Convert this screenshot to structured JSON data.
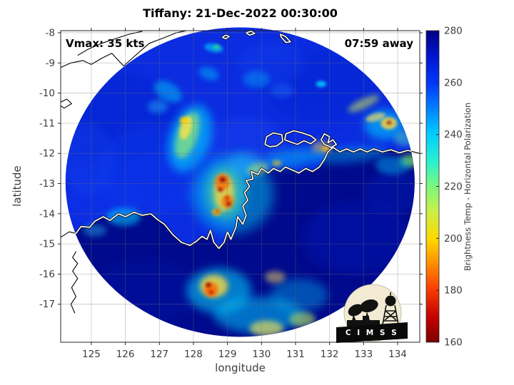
{
  "figure": {
    "name": "CIMSS microwave brightness temperature display"
  },
  "logo": {
    "text": "C I M S S"
  },
  "chart_data": {
    "type": "heatmap",
    "title": "Tiffany: 21-Dec-2022 00:30:00",
    "annotations": {
      "vmax": "Vmax: 35 kts",
      "away": "07:59 away"
    },
    "axes": {
      "xlabel": "longitude",
      "ylabel": "latitude",
      "xlim": [
        124.1,
        134.65
      ],
      "ylim": [
        -18.26,
        -7.93
      ],
      "xticks": [
        125,
        126,
        127,
        128,
        129,
        130,
        131,
        132,
        133,
        134
      ],
      "yticks": [
        -8,
        -9,
        -10,
        -11,
        -12,
        -13,
        -14,
        -15,
        -16,
        -17
      ],
      "grid": true,
      "tick_color": "#3d3d3d",
      "box_color": "#262626"
    },
    "colorbar": {
      "label": "Brightness Temp - Horizontal Polarization",
      "ticks": [
        280,
        260,
        240,
        220,
        200,
        180,
        160
      ],
      "range": [
        160,
        280
      ],
      "stops": [
        [
          0,
          "#000084"
        ],
        [
          9,
          "#0018d4"
        ],
        [
          17,
          "#0038f8"
        ],
        [
          25,
          "#0080ff"
        ],
        [
          33,
          "#00ccff"
        ],
        [
          42,
          "#2af0d0"
        ],
        [
          50,
          "#7cf87c"
        ],
        [
          58,
          "#c8f048"
        ],
        [
          67,
          "#ffd800"
        ],
        [
          75,
          "#ff8c00"
        ],
        [
          83,
          "#f83c00"
        ],
        [
          92,
          "#c40000"
        ],
        [
          100,
          "#7c0000"
        ]
      ]
    },
    "swath": {
      "center": [
        129.37,
        -12.95
      ],
      "radius_deg": 5.13,
      "base_color": "#0b2ce0"
    },
    "land": {
      "color": "#000a8c",
      "close_lat": -18.6
    },
    "features": [
      [
        "m",
        125.6,
        -10.8,
        2.0,
        1.5,
        0,
        "#0524cc",
        0.45,
        8
      ],
      [
        "m",
        127.0,
        -12.5,
        1.8,
        1.5,
        0,
        "#0e3cf2",
        0.35,
        8
      ],
      [
        "m",
        131.8,
        -9.8,
        1.7,
        1.2,
        0,
        "#0524cc",
        0.4,
        8
      ],
      [
        "m",
        129.5,
        -11.7,
        1.2,
        0.9,
        0,
        "#1a4af5",
        0.35,
        6
      ],
      [
        "m",
        125.3,
        -13.6,
        1.1,
        0.8,
        0,
        "#0a36ee",
        0.4,
        6
      ],
      [
        "m",
        124.9,
        -12.2,
        0.8,
        1.2,
        0,
        "#1646f0",
        0.3,
        6
      ],
      [
        "m",
        130.3,
        -9.0,
        1.0,
        0.7,
        0,
        "#1646f0",
        0.3,
        6
      ],
      [
        "l",
        132.8,
        -14.8,
        1.6,
        1.2,
        0,
        "#0018b4",
        0.45,
        8
      ],
      [
        "l",
        126.6,
        -16.6,
        1.6,
        1.1,
        0,
        "#0016a8",
        0.4,
        8
      ],
      [
        "l",
        133.9,
        -13.3,
        0.9,
        0.7,
        0,
        "#0020c0",
        0.35,
        6
      ],
      [
        "f",
        127.9,
        -11.5,
        0.6,
        1.15,
        18,
        "#00d2ff",
        0.6,
        6
      ],
      [
        "f",
        127.82,
        -11.4,
        0.3,
        0.8,
        18,
        "#8ce87a",
        0.75,
        4
      ],
      [
        "f",
        127.78,
        -11.15,
        0.16,
        0.4,
        15,
        "#ffe24a",
        0.8,
        2
      ],
      [
        "f",
        127.72,
        -10.9,
        0.12,
        0.12,
        0,
        "#ffd200",
        0.85,
        2
      ],
      [
        "f",
        127.25,
        -9.95,
        0.45,
        0.3,
        30,
        "#00c8f8",
        0.5,
        4
      ],
      [
        "f",
        126.95,
        -10.45,
        0.3,
        0.22,
        0,
        "#28c8ff",
        0.4,
        4
      ],
      [
        "f",
        128.45,
        -9.35,
        0.3,
        0.2,
        20,
        "#00ccff",
        0.45,
        4
      ],
      [
        "f",
        129.85,
        -9.55,
        0.4,
        0.28,
        0,
        "#00c4ff",
        0.35,
        4
      ],
      [
        "f",
        128.6,
        -8.5,
        0.28,
        0.14,
        10,
        "#00d8ff",
        0.6,
        2
      ],
      [
        "f",
        128.68,
        -8.47,
        0.09,
        0.07,
        0,
        "#34e07c",
        0.9,
        2
      ],
      [
        "f",
        131.75,
        -9.7,
        0.15,
        0.1,
        0,
        "#00e2ff",
        0.8,
        2
      ],
      [
        "f",
        130.6,
        -9.9,
        0.35,
        0.25,
        0,
        "#1e62f5",
        0.5,
        4
      ],
      [
        "f",
        129.15,
        -13.35,
        1.2,
        1.3,
        0,
        "#00c8f2",
        0.5,
        8
      ],
      [
        "f",
        128.95,
        -13.3,
        0.6,
        0.9,
        0,
        "#49dca0",
        0.55,
        6
      ],
      [
        "f",
        128.9,
        -13.3,
        0.3,
        0.62,
        0,
        "#ffd83a",
        0.8,
        4
      ],
      [
        "f",
        128.85,
        -12.95,
        0.22,
        0.28,
        0,
        "#ff6a00",
        0.75,
        2
      ],
      [
        "f",
        129.0,
        -13.6,
        0.18,
        0.22,
        0,
        "#ff7000",
        0.75,
        2
      ],
      [
        "f",
        128.68,
        -13.95,
        0.14,
        0.12,
        0,
        "#ffb400",
        0.8,
        2
      ],
      [
        "f",
        129.55,
        -12.35,
        0.5,
        0.4,
        0,
        "#2ab4f8",
        0.45,
        6
      ],
      [
        "f",
        129.9,
        -12.5,
        0.35,
        0.18,
        -15,
        "#b8e85c",
        0.55,
        4
      ],
      [
        "f",
        130.45,
        -12.32,
        0.14,
        0.11,
        0,
        "#ff9800",
        0.85,
        2
      ],
      [
        "f",
        130.9,
        -12.15,
        0.85,
        0.3,
        -8,
        "#00ccff",
        0.45,
        6
      ],
      [
        "f",
        131.9,
        -11.85,
        0.13,
        0.1,
        0,
        "#ff8400",
        0.9,
        2
      ],
      [
        "f",
        131.78,
        -11.8,
        0.3,
        0.2,
        0,
        "#ffd83a",
        0.5,
        4
      ],
      [
        "f",
        132.6,
        -12.05,
        1.1,
        0.25,
        -5,
        "#00c8ff",
        0.4,
        6
      ],
      [
        "f",
        134.35,
        -12.25,
        0.28,
        0.2,
        0,
        "#7ce05c",
        0.75,
        4
      ],
      [
        "f",
        133.85,
        -12.4,
        0.5,
        0.3,
        0,
        "#00c0f8",
        0.45,
        4
      ],
      [
        "f",
        133.62,
        -11.05,
        0.6,
        0.5,
        0,
        "#00ccff",
        0.6,
        6
      ],
      [
        "f",
        133.74,
        -11.0,
        0.24,
        0.2,
        0,
        "#ffd83a",
        0.85,
        2
      ],
      [
        "f",
        133.0,
        -10.35,
        0.5,
        0.16,
        -25,
        "#c4e458",
        0.6,
        4
      ],
      [
        "f",
        133.35,
        -10.8,
        0.3,
        0.13,
        -15,
        "#ffe258",
        0.65,
        2
      ],
      [
        "f",
        134.2,
        -11.5,
        0.3,
        0.25,
        0,
        "#4ad8c8",
        0.5,
        4
      ],
      [
        "f",
        125.95,
        -14.1,
        0.5,
        0.3,
        0,
        "#00ccff",
        0.55,
        4
      ],
      [
        "f",
        125.1,
        -14.55,
        0.35,
        0.2,
        0,
        "#2cc4f4",
        0.4,
        4
      ],
      [
        "f",
        128.75,
        -16.55,
        0.95,
        0.75,
        0,
        "#00c8f8",
        0.6,
        6
      ],
      [
        "f",
        128.6,
        -16.4,
        0.42,
        0.38,
        0,
        "#ffd83a",
        0.8,
        4
      ],
      [
        "f",
        128.52,
        -16.52,
        0.2,
        0.24,
        0,
        "#ff6a00",
        0.85,
        2
      ],
      [
        "f",
        129.9,
        -17.35,
        1.3,
        0.6,
        0,
        "#00c4f8",
        0.55,
        6
      ],
      [
        "f",
        130.15,
        -17.8,
        0.5,
        0.26,
        0,
        "#e4e05a",
        0.7,
        4
      ],
      [
        "f",
        131.2,
        -17.5,
        0.38,
        0.26,
        0,
        "#aade62",
        0.65,
        4
      ],
      [
        "f",
        131.1,
        -16.7,
        0.85,
        0.55,
        0,
        "#00b8f0",
        0.4,
        6
      ],
      [
        "f",
        130.4,
        -16.1,
        0.3,
        0.2,
        0,
        "#ffdf60",
        0.5,
        4
      ]
    ],
    "cores": [
      [
        128.86,
        -12.87,
        0.15,
        "#8c0000"
      ],
      [
        128.79,
        -13.2,
        0.12,
        "#a30000"
      ],
      [
        128.99,
        -13.48,
        0.1,
        "#c41c00"
      ],
      [
        129.03,
        -13.67,
        0.12,
        "#8c0000"
      ],
      [
        128.7,
        -13.92,
        0.09,
        "#d43400"
      ],
      [
        128.44,
        -16.36,
        0.13,
        "#8c0000"
      ],
      [
        128.52,
        -16.6,
        0.1,
        "#a30000"
      ],
      [
        133.75,
        -10.98,
        0.11,
        "#a30000"
      ]
    ],
    "coastlines": {
      "mainland": [
        [
          124.1,
          -14.78
        ],
        [
          124.35,
          -14.6
        ],
        [
          124.55,
          -14.65
        ],
        [
          124.7,
          -14.42
        ],
        [
          124.95,
          -14.45
        ],
        [
          125.1,
          -14.25
        ],
        [
          125.35,
          -14.1
        ],
        [
          125.55,
          -14.22
        ],
        [
          125.8,
          -14.0
        ],
        [
          126.0,
          -14.1
        ],
        [
          126.25,
          -13.95
        ],
        [
          126.5,
          -14.05
        ],
        [
          126.75,
          -14.0
        ],
        [
          126.95,
          -14.2
        ],
        [
          127.15,
          -14.35
        ],
        [
          127.4,
          -14.7
        ],
        [
          127.65,
          -14.95
        ],
        [
          127.9,
          -15.05
        ],
        [
          128.1,
          -14.9
        ],
        [
          128.25,
          -14.75
        ],
        [
          128.4,
          -14.85
        ],
        [
          128.5,
          -14.55
        ],
        [
          128.6,
          -14.95
        ],
        [
          128.75,
          -15.15
        ],
        [
          128.9,
          -14.95
        ],
        [
          129.0,
          -14.6
        ],
        [
          129.1,
          -14.85
        ],
        [
          129.25,
          -14.45
        ],
        [
          129.3,
          -14.1
        ],
        [
          129.45,
          -14.35
        ],
        [
          129.55,
          -14.05
        ],
        [
          129.45,
          -13.75
        ],
        [
          129.6,
          -13.55
        ],
        [
          129.5,
          -13.3
        ],
        [
          129.65,
          -13.1
        ],
        [
          129.55,
          -12.9
        ],
        [
          129.75,
          -12.85
        ],
        [
          129.7,
          -12.6
        ],
        [
          129.9,
          -12.7
        ],
        [
          130.0,
          -12.5
        ],
        [
          130.2,
          -12.65
        ],
        [
          130.35,
          -12.5
        ],
        [
          130.55,
          -12.6
        ],
        [
          130.7,
          -12.45
        ],
        [
          130.9,
          -12.55
        ],
        [
          131.1,
          -12.65
        ],
        [
          131.3,
          -12.5
        ],
        [
          131.5,
          -12.6
        ],
        [
          131.7,
          -12.45
        ],
        [
          131.85,
          -12.2
        ],
        [
          131.95,
          -11.95
        ],
        [
          132.1,
          -11.8
        ],
        [
          132.3,
          -11.95
        ],
        [
          132.5,
          -11.85
        ],
        [
          132.7,
          -11.95
        ],
        [
          132.9,
          -11.85
        ],
        [
          133.1,
          -11.95
        ],
        [
          133.3,
          -11.85
        ],
        [
          133.55,
          -11.95
        ],
        [
          133.8,
          -11.88
        ],
        [
          134.05,
          -11.98
        ],
        [
          134.3,
          -11.9
        ],
        [
          134.65,
          -12.0
        ]
      ],
      "islands": [
        [
          [
            130.1,
            -11.7
          ],
          [
            130.15,
            -11.45
          ],
          [
            130.35,
            -11.32
          ],
          [
            130.6,
            -11.38
          ],
          [
            130.62,
            -11.6
          ],
          [
            130.45,
            -11.75
          ],
          [
            130.25,
            -11.78
          ],
          [
            130.1,
            -11.7
          ]
        ],
        [
          [
            130.68,
            -11.55
          ],
          [
            130.72,
            -11.35
          ],
          [
            130.95,
            -11.25
          ],
          [
            131.2,
            -11.32
          ],
          [
            131.45,
            -11.42
          ],
          [
            131.6,
            -11.55
          ],
          [
            131.45,
            -11.68
          ],
          [
            131.25,
            -11.58
          ],
          [
            131.05,
            -11.7
          ],
          [
            130.85,
            -11.62
          ],
          [
            130.68,
            -11.55
          ]
        ],
        [
          [
            131.75,
            -11.55
          ],
          [
            131.85,
            -11.35
          ],
          [
            132.0,
            -11.45
          ],
          [
            131.95,
            -11.65
          ],
          [
            132.1,
            -11.55
          ],
          [
            132.2,
            -11.7
          ],
          [
            132.05,
            -11.8
          ],
          [
            131.85,
            -11.7
          ],
          [
            131.75,
            -11.55
          ]
        ],
        [
          [
            128.85,
            -8.15
          ],
          [
            128.95,
            -8.08
          ],
          [
            129.05,
            -8.12
          ],
          [
            128.95,
            -8.2
          ],
          [
            128.85,
            -8.15
          ]
        ],
        [
          [
            129.55,
            -8.0
          ],
          [
            129.7,
            -7.95
          ],
          [
            129.8,
            -8.02
          ],
          [
            129.65,
            -8.08
          ],
          [
            129.55,
            -8.0
          ]
        ],
        [
          [
            130.55,
            -8.05
          ],
          [
            130.7,
            -8.12
          ],
          [
            130.85,
            -8.3
          ],
          [
            130.72,
            -8.32
          ],
          [
            130.58,
            -8.15
          ],
          [
            130.55,
            -8.05
          ]
        ]
      ],
      "outside": [
        [
          [
            124.1,
            -9.15
          ],
          [
            124.4,
            -9.0
          ],
          [
            124.75,
            -8.92
          ],
          [
            125.0,
            -9.05
          ],
          [
            125.3,
            -8.85
          ],
          [
            125.6,
            -8.68
          ],
          [
            125.95,
            -9.1
          ],
          [
            126.15,
            -8.9
          ],
          [
            126.45,
            -8.6
          ],
          [
            126.7,
            -8.35
          ],
          [
            127.1,
            -8.18
          ],
          [
            127.5,
            -8.0
          ],
          [
            127.8,
            -7.93
          ]
        ],
        [
          [
            124.6,
            -8.75
          ],
          [
            124.9,
            -8.55
          ],
          [
            125.3,
            -8.35
          ],
          [
            125.7,
            -8.2
          ],
          [
            126.1,
            -8.05
          ],
          [
            126.5,
            -7.95
          ]
        ],
        [
          [
            124.1,
            -10.3
          ],
          [
            124.28,
            -10.2
          ],
          [
            124.42,
            -10.35
          ],
          [
            124.2,
            -10.5
          ],
          [
            124.1,
            -10.42
          ]
        ],
        [
          [
            124.55,
            -15.25
          ],
          [
            124.45,
            -15.45
          ],
          [
            124.6,
            -15.65
          ],
          [
            124.45,
            -15.9
          ],
          [
            124.6,
            -16.15
          ],
          [
            124.42,
            -16.45
          ],
          [
            124.55,
            -16.75
          ],
          [
            124.4,
            -17.0
          ],
          [
            124.52,
            -17.3
          ]
        ]
      ]
    }
  }
}
